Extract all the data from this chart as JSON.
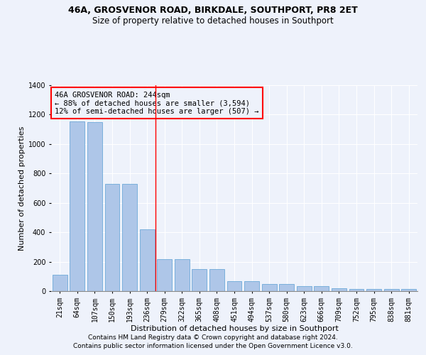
{
  "title": "46A, GROSVENOR ROAD, BIRKDALE, SOUTHPORT, PR8 2ET",
  "subtitle": "Size of property relative to detached houses in Southport",
  "xlabel": "Distribution of detached houses by size in Southport",
  "ylabel": "Number of detached properties",
  "footer_line1": "Contains HM Land Registry data © Crown copyright and database right 2024.",
  "footer_line2": "Contains public sector information licensed under the Open Government Licence v3.0.",
  "annotation_line1": "46A GROSVENOR ROAD: 244sqm",
  "annotation_line2": "← 88% of detached houses are smaller (3,594)",
  "annotation_line3": "12% of semi-detached houses are larger (507) →",
  "bar_labels": [
    "21sqm",
    "64sqm",
    "107sqm",
    "150sqm",
    "193sqm",
    "236sqm",
    "279sqm",
    "322sqm",
    "365sqm",
    "408sqm",
    "451sqm",
    "494sqm",
    "537sqm",
    "580sqm",
    "623sqm",
    "666sqm",
    "709sqm",
    "752sqm",
    "795sqm",
    "838sqm",
    "881sqm"
  ],
  "bar_values": [
    110,
    1155,
    1150,
    730,
    730,
    420,
    215,
    215,
    150,
    150,
    70,
    70,
    50,
    50,
    33,
    33,
    18,
    13,
    13,
    15,
    15
  ],
  "bar_color": "#aec6e8",
  "bar_edge_color": "#5a9fd4",
  "reference_line_x": 5.5,
  "reference_line_color": "red",
  "ylim": [
    0,
    1400
  ],
  "bg_color": "#eef2fb",
  "grid_color": "#ffffff",
  "title_fontsize": 9,
  "subtitle_fontsize": 8.5,
  "axis_label_fontsize": 8,
  "tick_fontsize": 7,
  "footer_fontsize": 6.5,
  "annotation_fontsize": 7.5
}
